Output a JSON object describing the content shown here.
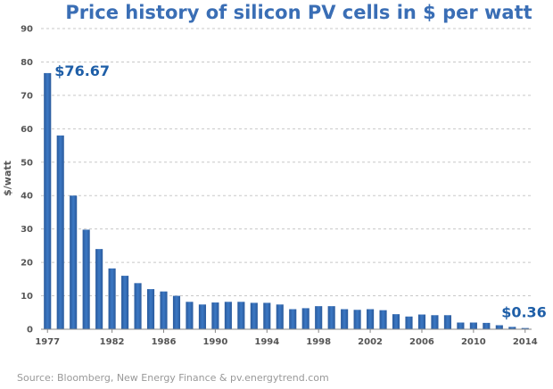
{
  "colors": {
    "title": "#3a6eb5",
    "bar": "#3b78c4",
    "bar_dark": "#2a5a9c",
    "annotation": "#1f5fa8",
    "grid": "#c8c8c8",
    "axis": "#888888"
  },
  "chart_data": {
    "type": "bar",
    "title": "Price history of silicon PV cells in $ per watt",
    "xlabel": "",
    "ylabel": "$/watt",
    "ylim": [
      0,
      90
    ],
    "yticks": [
      0,
      10,
      20,
      30,
      40,
      50,
      60,
      70,
      80,
      90
    ],
    "xtick_labels": [
      "1977",
      "1982",
      "1986",
      "1990",
      "1994",
      "1998",
      "2002",
      "2006",
      "2010",
      "2014"
    ],
    "grid": "horizontal dashed",
    "categories": [
      "1977",
      "1978",
      "1979",
      "1980",
      "1981",
      "1982",
      "1983",
      "1984",
      "1985",
      "1986",
      "1987",
      "1988",
      "1989",
      "1990",
      "1991",
      "1992",
      "1993",
      "1994",
      "1995",
      "1996",
      "1997",
      "1998",
      "1999",
      "2000",
      "2001",
      "2002",
      "2003",
      "2004",
      "2005",
      "2006",
      "2007",
      "2008",
      "2009",
      "2010",
      "2011",
      "2012",
      "2013",
      "2014"
    ],
    "values": [
      76.67,
      58,
      40,
      29.8,
      24,
      18.2,
      16,
      13.8,
      12,
      11.3,
      10,
      8.2,
      7.4,
      8,
      8.2,
      8.2,
      7.9,
      7.9,
      7.4,
      6,
      6.3,
      6.9,
      6.9,
      6,
      5.8,
      6,
      5.7,
      4.5,
      3.8,
      4.4,
      4.2,
      4.2,
      2,
      2,
      1.9,
      1.2,
      0.7,
      0.36
    ],
    "annotations": [
      {
        "text": "$76.67",
        "category": "1977",
        "value": 76.67
      },
      {
        "text": "$0.36",
        "category": "2014",
        "value": 0.36
      }
    ],
    "source": "Source: Bloomberg, New Energy Finance & pv.energytrend.com"
  }
}
